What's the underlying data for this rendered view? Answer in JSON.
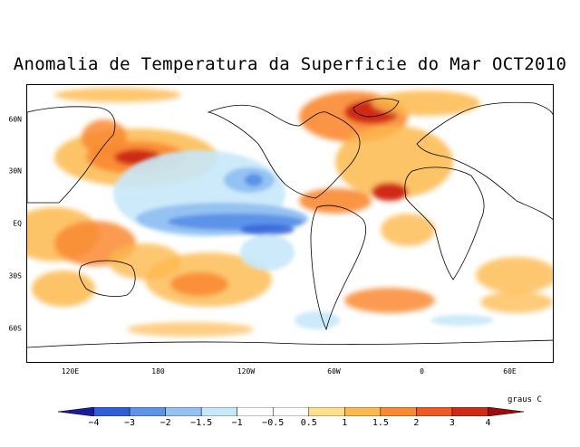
{
  "title": "Anomalia de Temperatura da Superficie do Mar OCT2010",
  "units": "graus C",
  "lat_labels": [
    "60N",
    "30N",
    "EQ",
    "30S",
    "60S"
  ],
  "lat_values": [
    60,
    30,
    0,
    -30,
    -60
  ],
  "lon_labels": [
    "120E",
    "180",
    "120W",
    "60W",
    "0",
    "60E"
  ],
  "lon_values": [
    120,
    180,
    240,
    300,
    360,
    420
  ],
  "colorbar": {
    "labels": [
      "−4",
      "−3",
      "−2",
      "−1.5",
      "−1",
      "−0.5",
      "0.5",
      "1",
      "1.5",
      "2",
      "3",
      "4"
    ],
    "colors": [
      "#1a1a9e",
      "#2e5fd6",
      "#5d93e8",
      "#94c2f2",
      "#c6e8f8",
      "#ffffff",
      "#ffe08c",
      "#fdb94e",
      "#f98a32",
      "#ef5a22",
      "#cf2a14",
      "#a00a0a"
    ]
  }
}
